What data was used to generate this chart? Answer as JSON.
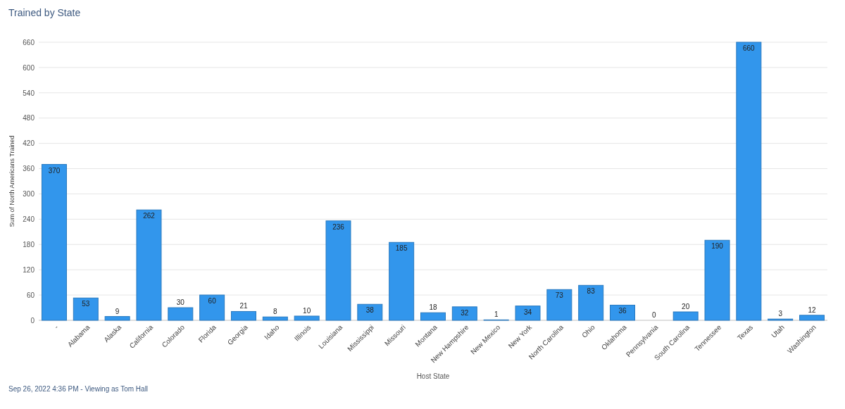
{
  "chart_data": {
    "type": "bar",
    "title": "Trained by State",
    "xlabel": "Host State",
    "ylabel": "Sum of North Americans Trained",
    "categories": [
      "-",
      "Alabama",
      "Alaska",
      "California",
      "Colorado",
      "Florida",
      "Georgia",
      "Idaho",
      "Illinois",
      "Louisiana",
      "Mississippi",
      "Missouri",
      "Montana",
      "New Hampshire",
      "New Mexico",
      "New York",
      "North Carolina",
      "Ohio",
      "Oklahoma",
      "Pennsylvania",
      "South Carolina",
      "Tennessee",
      "Texas",
      "Utah",
      "Washington"
    ],
    "values": [
      370,
      53,
      9,
      262,
      30,
      60,
      21,
      8,
      10,
      236,
      38,
      185,
      18,
      32,
      1,
      34,
      73,
      83,
      36,
      0,
      20,
      190,
      660,
      3,
      12
    ],
    "color": "#3296ec",
    "ylim": [
      0,
      660
    ],
    "yticks": [
      0,
      60,
      120,
      180,
      240,
      300,
      360,
      420,
      480,
      540,
      600,
      660
    ],
    "grid": "y",
    "data_labels": true,
    "annotations": [
      "Sep 26, 2022 4:36 PM - Viewing as Tom Hall"
    ]
  }
}
